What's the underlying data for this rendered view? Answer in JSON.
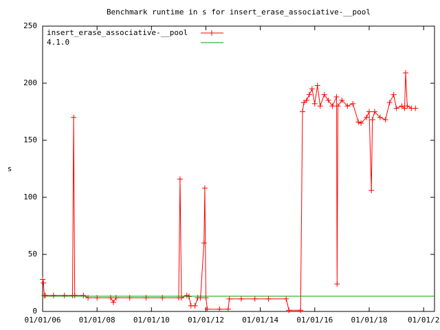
{
  "chart_data": {
    "type": "line",
    "title": "Benchmark runtime in s for insert_erase_associative-__pool",
    "y_label": "s",
    "x": [
      2006.0,
      2006.03,
      2006.06,
      2006.1,
      2006.4,
      2006.8,
      2007.1,
      2007.14,
      2007.18,
      2007.5,
      2007.67,
      2008.0,
      2008.5,
      2008.6,
      2008.7,
      2009.2,
      2009.8,
      2010.4,
      2011.0,
      2011.05,
      2011.1,
      2011.3,
      2011.38,
      2011.45,
      2011.6,
      2011.7,
      2011.8,
      2011.93,
      2011.96,
      2012.0,
      2012.05,
      2012.5,
      2012.82,
      2012.86,
      2013.3,
      2013.8,
      2014.3,
      2014.95,
      2015.05,
      2015.48,
      2015.55,
      2015.6,
      2015.7,
      2015.8,
      2015.9,
      2016.0,
      2016.1,
      2016.2,
      2016.35,
      2016.5,
      2016.65,
      2016.8,
      2016.82,
      2016.85,
      2017.0,
      2017.2,
      2017.4,
      2017.6,
      2017.7,
      2017.9,
      2018.0,
      2018.08,
      2018.12,
      2018.2,
      2018.4,
      2018.6,
      2018.75,
      2018.9,
      2019.0,
      2019.2,
      2019.3,
      2019.34,
      2019.4,
      2019.55,
      2019.7
    ],
    "series": [
      {
        "name": "insert_erase_associative-__pool",
        "color": "#ff0000",
        "markers": true,
        "values": [
          28,
          25,
          14,
          14,
          14,
          14,
          14,
          170,
          14,
          14,
          12,
          12,
          12,
          8,
          12,
          12,
          12,
          12,
          12,
          116,
          12,
          14,
          13,
          5,
          5,
          12,
          12,
          60,
          108,
          12,
          2,
          2,
          2,
          11,
          11,
          11,
          11,
          11,
          1,
          1,
          175,
          183,
          185,
          190,
          195,
          182,
          198,
          180,
          190,
          185,
          180,
          188,
          24,
          180,
          185,
          180,
          182,
          166,
          165,
          170,
          175,
          106,
          168,
          175,
          170,
          168,
          183,
          190,
          178,
          180,
          178,
          209,
          180,
          178,
          178
        ]
      },
      {
        "name": "4.1.0",
        "color": "#00a000",
        "markers": false,
        "x": [
          2006.0,
          2020.4
        ],
        "values": [
          13.3,
          13.3
        ]
      }
    ],
    "xlim": [
      2006.0,
      2020.4
    ],
    "xticks": [
      {
        "value": 2006,
        "label": "01/01/06"
      },
      {
        "value": 2008,
        "label": "01/01/08"
      },
      {
        "value": 2010,
        "label": "01/01/10"
      },
      {
        "value": 2012,
        "label": "01/01/12"
      },
      {
        "value": 2014,
        "label": "01/01/14"
      },
      {
        "value": 2016,
        "label": "01/01/16"
      },
      {
        "value": 2018,
        "label": "01/01/18"
      },
      {
        "value": 2020,
        "label": "01/01/2"
      }
    ],
    "ylim": [
      0,
      250
    ],
    "yticks": [
      0,
      50,
      100,
      150,
      200,
      250
    ],
    "legend": "top-left"
  }
}
